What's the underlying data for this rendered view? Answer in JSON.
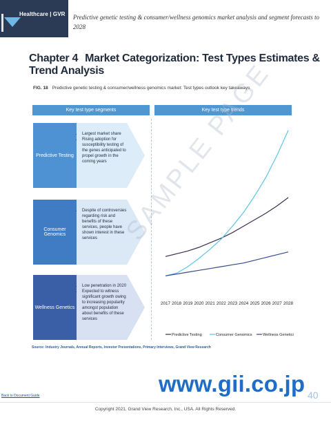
{
  "header": {
    "brand": "Healthcare | GVR",
    "title": "Predictive genetic testing & consumer/wellness genomics market analysis and segment forecasts to 2028"
  },
  "chapter": {
    "number": "Chapter 4",
    "title": "Market Categorization: Test Types Estimates & Trend Analysis"
  },
  "figure": {
    "label": "FIG. 18",
    "caption": "Predictive genetic testing & consumer/wellness genomics market: Test types outlook key takeaways"
  },
  "left_header": "Key test type segments",
  "right_header": "Key test type trends",
  "segments": [
    {
      "name": "Predictive Testing",
      "color": "#4f92d4",
      "arrow_color": "#dcecf8",
      "bullets": [
        "Largest market share",
        "Rising adoption for susceptibility testing of the genes anticipated to propel growth in the coming years"
      ]
    },
    {
      "name": "Consumer Genomics",
      "color": "#3f7cc4",
      "arrow_color": "#dbe8f6",
      "bullets": [
        "Despite of controversies regarding risk and benefits of these services, people have shown interest in these services"
      ]
    },
    {
      "name": "Wellness Genetics",
      "color": "#3a5fa6",
      "arrow_color": "#d7e1f1",
      "bullets": [
        "Low penetration in 2020",
        "Expected to witness significant growth owing to increasing popularity amongst population about benefits of these services"
      ]
    }
  ],
  "chart_data": {
    "type": "line",
    "x": [
      "2017",
      "2018",
      "2019",
      "2020",
      "2021",
      "2022",
      "2023",
      "2024",
      "2025",
      "2026",
      "2027",
      "2028"
    ],
    "series": [
      {
        "name": "Predictive Testing",
        "color": "#3c2d52",
        "values": [
          38,
          41,
          44,
          48,
          53,
          58,
          64,
          71,
          78,
          85,
          93,
          102
        ]
      },
      {
        "name": "Consumer Genomics",
        "color": "#5bc4e6",
        "values": [
          17,
          20,
          27,
          36,
          46,
          57,
          71,
          86,
          104,
          124,
          148,
          175
        ]
      },
      {
        "name": "Wellness Genetics",
        "color": "#354a8a",
        "values": [
          17,
          19,
          21,
          23,
          25,
          27,
          29,
          31,
          34,
          37,
          40,
          43
        ]
      }
    ],
    "ylim": [
      0,
      180
    ],
    "grid": false,
    "legend": "bottom"
  },
  "source": "Source: Industry Journals, Annual Reports, Investor Presentations, Primary Interviews, Grand View Research",
  "back_link": "Back to Document Guide",
  "watermark": "SAMPLE PAGE",
  "gii_logo": "www.gii.co.jp",
  "page_number": "40",
  "copyright": "Copyright 2021, Grand View Research, Inc., USA. All Rights Reserved."
}
